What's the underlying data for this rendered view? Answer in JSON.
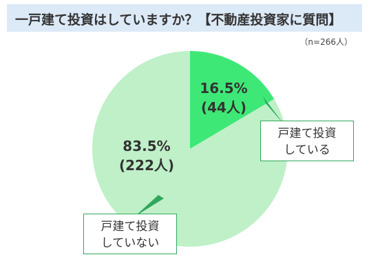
{
  "header": {
    "title": "一戸建て投資はしていますか？【不動産投資家に質問】",
    "sample": "（n=266人）"
  },
  "chart_data": {
    "type": "pie",
    "title": "一戸建て投資はしていますか？【不動産投資家に質問】",
    "n": 266,
    "slices": [
      {
        "label_lines": [
          "戸建て投資",
          "している"
        ],
        "percent": 16.5,
        "count_text": "(44人)",
        "percent_text": "16.5%",
        "color": "#3ee877"
      },
      {
        "label_lines": [
          "戸建て投資",
          "していない"
        ],
        "percent": 83.5,
        "count_text": "(222人)",
        "percent_text": "83.5%",
        "color": "#bff0c8"
      }
    ]
  }
}
